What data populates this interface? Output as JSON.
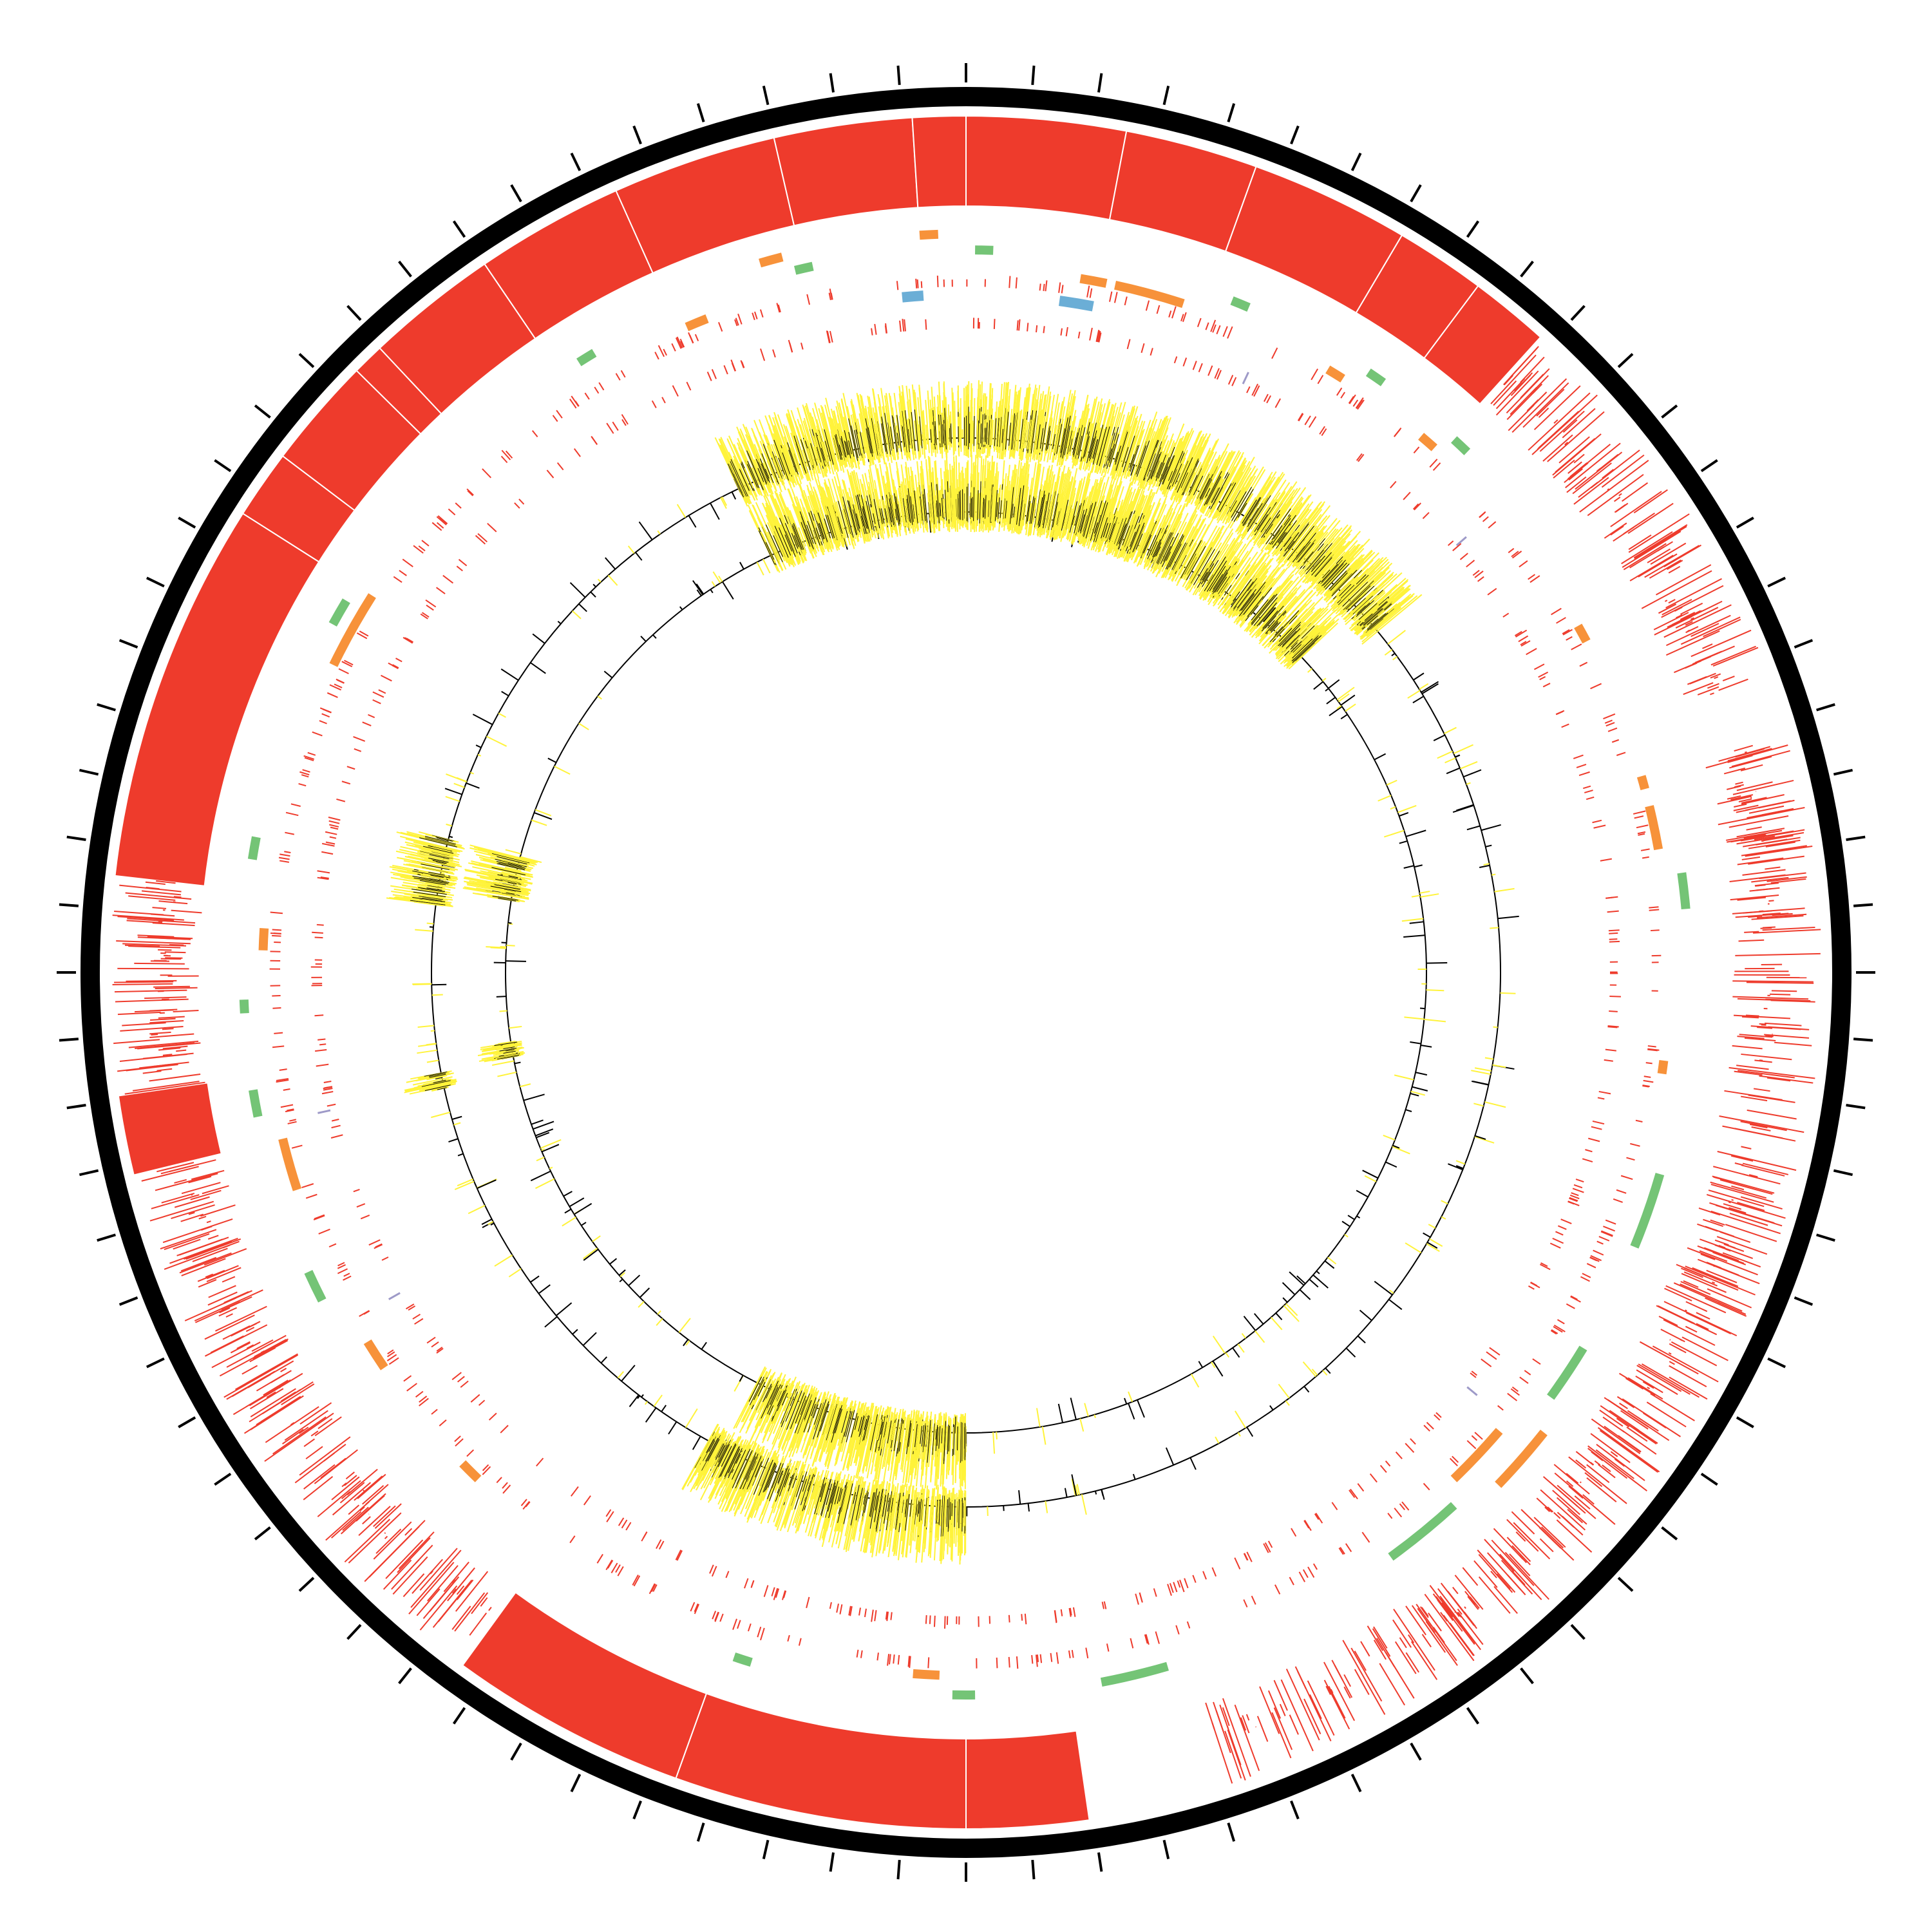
{
  "figure": {
    "kind": "circular-genome-map"
  },
  "colors": {
    "background": "#ffffff",
    "backbone": "#000000",
    "ticks": "#000000",
    "feature_red": "#ee3b2c",
    "feature_orange": "#f7923a",
    "feature_green": "#74c476",
    "feature_blue": "#6baed6",
    "feature_purple": "#9e9ac8",
    "coverage_fill": "#fff33b",
    "coverage_line": "#000000"
  },
  "ticks": {
    "count": 84
  },
  "tracks": {
    "outer_blocks": [
      {
        "start": 0.768,
        "end": 0.84
      },
      {
        "start": 0.84,
        "end": 0.853
      },
      {
        "start": 0.853,
        "end": 0.874
      },
      {
        "start": 0.874,
        "end": 0.88
      },
      {
        "start": 0.88,
        "end": 0.905
      },
      {
        "start": 0.905,
        "end": 0.933
      },
      {
        "start": 0.933,
        "end": 0.964
      },
      {
        "start": 0.964,
        "end": 0.99
      },
      {
        "start": 0.99,
        "end": 1.0
      },
      {
        "start": 0.0,
        "end": 0.03
      },
      {
        "start": 0.03,
        "end": 0.055
      },
      {
        "start": 0.055,
        "end": 0.085
      },
      {
        "start": 0.085,
        "end": 0.102
      },
      {
        "start": 0.102,
        "end": 0.117
      },
      {
        "start": 0.477,
        "end": 0.5
      },
      {
        "start": 0.5,
        "end": 0.555
      },
      {
        "start": 0.555,
        "end": 0.6
      },
      {
        "start": 0.712,
        "end": 0.727
      }
    ],
    "outer_line_regions": [
      {
        "start": 0.727,
        "end": 0.768,
        "density": 0.9
      },
      {
        "start": 0.63,
        "end": 0.712,
        "density": 0.75
      },
      {
        "start": 0.6,
        "end": 0.63,
        "density": 0.6
      },
      {
        "start": 0.117,
        "end": 0.145,
        "density": 0.8
      },
      {
        "start": 0.145,
        "end": 0.195,
        "density": 0.7
      },
      {
        "start": 0.205,
        "end": 0.24,
        "density": 1.0
      },
      {
        "start": 0.24,
        "end": 0.285,
        "density": 0.55
      },
      {
        "start": 0.285,
        "end": 0.33,
        "density": 0.85
      },
      {
        "start": 0.33,
        "end": 0.4,
        "density": 0.8
      },
      {
        "start": 0.4,
        "end": 0.45,
        "density": 0.6
      }
    ],
    "orange_blocks": [
      {
        "start": 0.955,
        "end": 0.96,
        "ring": 0
      },
      {
        "start": 0.026,
        "end": 0.032,
        "ring": 1
      },
      {
        "start": 0.034,
        "end": 0.05,
        "ring": 1
      },
      {
        "start": 0.086,
        "end": 0.09,
        "ring": 1
      },
      {
        "start": 0.112,
        "end": 0.116,
        "ring": 1
      },
      {
        "start": 0.168,
        "end": 0.172,
        "ring": 1
      },
      {
        "start": 0.205,
        "end": 0.208,
        "ring": 1
      },
      {
        "start": 0.212,
        "end": 0.222,
        "ring": 1
      },
      {
        "start": 0.27,
        "end": 0.273,
        "ring": 1
      },
      {
        "start": 0.357,
        "end": 0.372,
        "ring": 0
      },
      {
        "start": 0.363,
        "end": 0.378,
        "ring": 1
      },
      {
        "start": 0.506,
        "end": 0.512,
        "ring": 1
      },
      {
        "start": 0.622,
        "end": 0.627,
        "ring": 1
      },
      {
        "start": 0.655,
        "end": 0.662,
        "ring": 1
      },
      {
        "start": 0.7,
        "end": 0.712,
        "ring": 1
      },
      {
        "start": 0.755,
        "end": 0.76,
        "ring": 1
      },
      {
        "start": 0.822,
        "end": 0.84,
        "ring": 1
      },
      {
        "start": 0.935,
        "end": 0.94,
        "ring": 1
      },
      {
        "start": 0.99,
        "end": 0.994,
        "ring": 0
      }
    ],
    "green_blocks": [
      {
        "start": 0.002,
        "end": 0.006
      },
      {
        "start": 0.06,
        "end": 0.064
      },
      {
        "start": 0.094,
        "end": 0.098
      },
      {
        "start": 0.118,
        "end": 0.122
      },
      {
        "start": 0.228,
        "end": 0.236
      },
      {
        "start": 0.295,
        "end": 0.312
      },
      {
        "start": 0.337,
        "end": 0.35
      },
      {
        "start": 0.382,
        "end": 0.4
      },
      {
        "start": 0.455,
        "end": 0.47
      },
      {
        "start": 0.498,
        "end": 0.503
      },
      {
        "start": 0.548,
        "end": 0.552
      },
      {
        "start": 0.675,
        "end": 0.682
      },
      {
        "start": 0.718,
        "end": 0.724
      },
      {
        "start": 0.741,
        "end": 0.744
      },
      {
        "start": 0.775,
        "end": 0.78
      },
      {
        "start": 0.83,
        "end": 0.836
      },
      {
        "start": 0.91,
        "end": 0.914
      },
      {
        "start": 0.962,
        "end": 0.966
      }
    ],
    "blue_blocks": [
      {
        "start": 0.985,
        "end": 0.99
      },
      {
        "start": 0.022,
        "end": 0.03
      }
    ],
    "purple_marks": [
      {
        "pos": 0.07
      },
      {
        "pos": 0.136
      },
      {
        "pos": 0.36
      },
      {
        "pos": 0.668
      },
      {
        "pos": 0.716
      }
    ],
    "coverage_outer": [
      {
        "start": 0.93,
        "end": 1.0,
        "amp": 1.0
      },
      {
        "start": 0.0,
        "end": 0.14,
        "amp": 1.0
      },
      {
        "start": 0.5,
        "end": 0.58,
        "amp": 1.0
      },
      {
        "start": 0.715,
        "end": 0.72,
        "amp": 0.7
      },
      {
        "start": 0.77,
        "end": 0.79,
        "amp": 0.9
      }
    ],
    "coverage_inner": [
      {
        "start": 0.93,
        "end": 1.0,
        "amp": 1.0
      },
      {
        "start": 0.0,
        "end": 0.13,
        "amp": 1.0
      },
      {
        "start": 0.5,
        "end": 0.575,
        "amp": 1.0
      },
      {
        "start": 0.72,
        "end": 0.726,
        "amp": 0.6
      },
      {
        "start": 0.775,
        "end": 0.79,
        "amp": 0.9
      }
    ]
  }
}
